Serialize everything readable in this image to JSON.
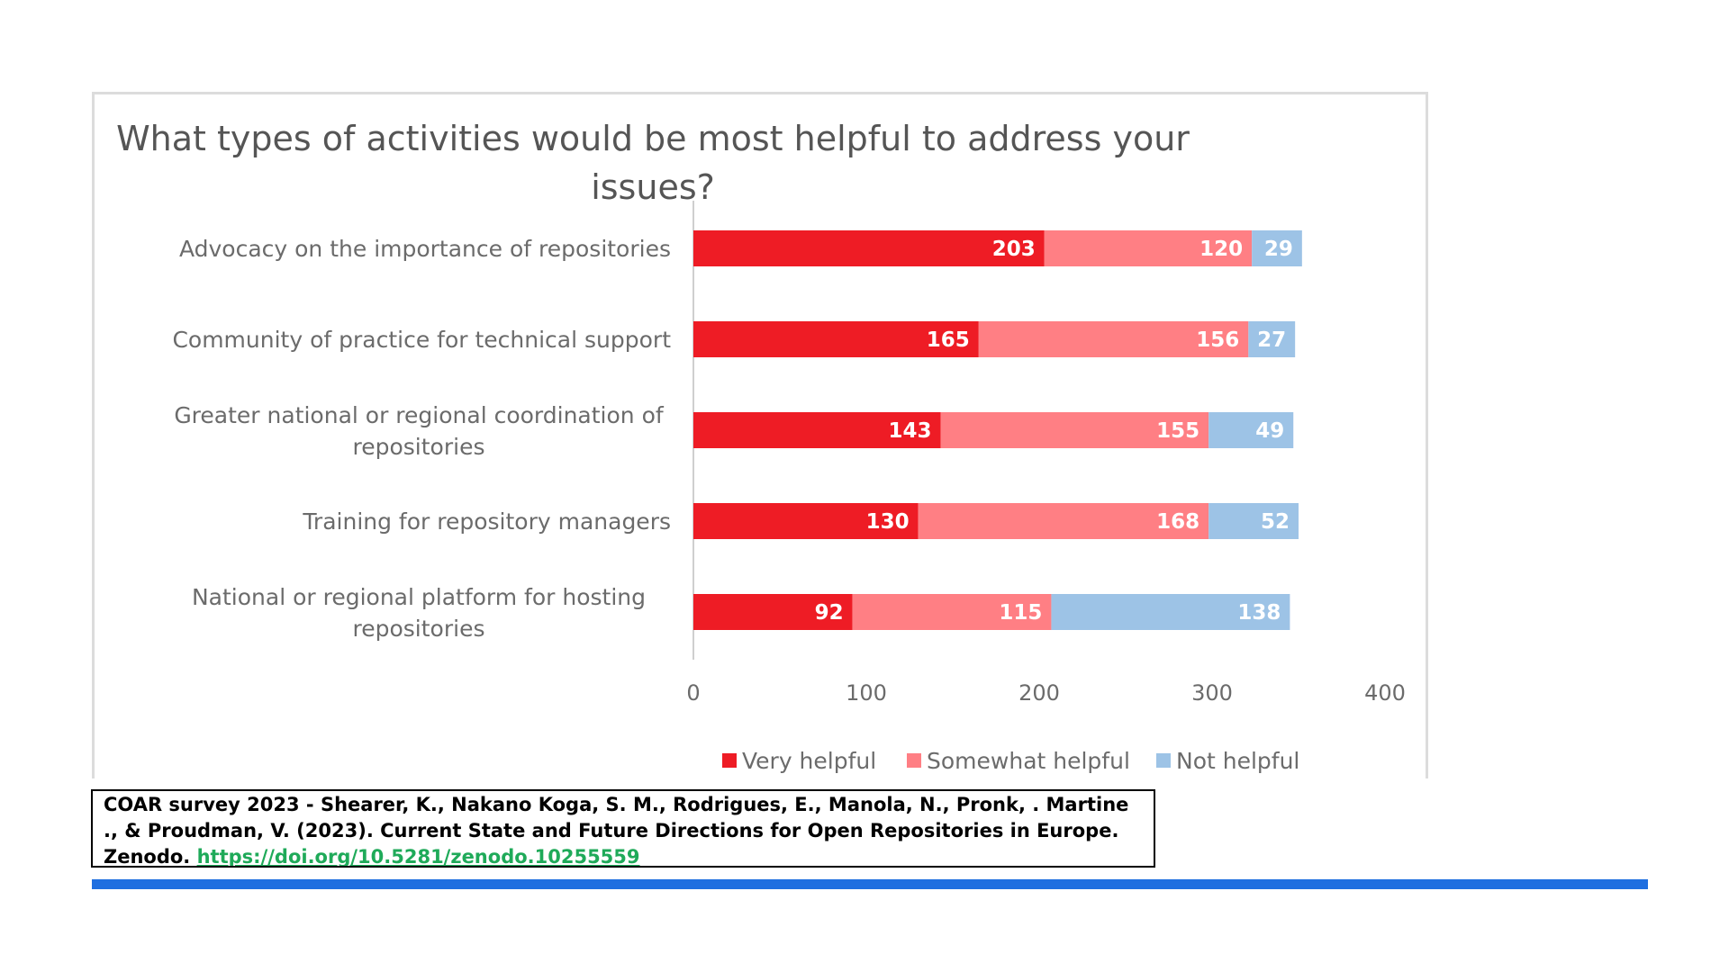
{
  "chart_data": {
    "type": "bar",
    "orientation": "horizontal",
    "stacked": true,
    "title": "What types of activities would be most helpful to address your issues?",
    "categories": [
      "Advocacy on the importance of repositories",
      "Community of practice for technical support",
      "Greater national or regional coordination of repositories",
      "Training for repository managers",
      "National or regional platform for hosting repositories"
    ],
    "series": [
      {
        "name": "Very helpful",
        "color": "#ee1c25",
        "values": [
          203,
          165,
          143,
          130,
          92
        ]
      },
      {
        "name": "Somewhat helpful",
        "color": "#ff7f84",
        "values": [
          120,
          156,
          155,
          168,
          115
        ]
      },
      {
        "name": "Not helpful",
        "color": "#9dc3e6",
        "values": [
          29,
          27,
          49,
          52,
          138
        ]
      }
    ],
    "xlim": [
      0,
      400
    ],
    "xticks": [
      "0",
      "100",
      "200",
      "300",
      "400"
    ],
    "legend_position": "bottom",
    "xlabel": "",
    "ylabel": ""
  },
  "citation": {
    "text": "COAR survey 2023 - Shearer, K., Nakano Koga, S. M., Rodrigues, E., Manola, N., Pronk, . Martine ., & Proudman, V. (2023). Current State and Future Directions for Open Repositories in Europe. Zenodo. ",
    "link": "https://doi.org/10.5281/zenodo.10255559"
  },
  "colors": {
    "accent_bar": "#1f6fe0",
    "link": "#1faa59"
  }
}
